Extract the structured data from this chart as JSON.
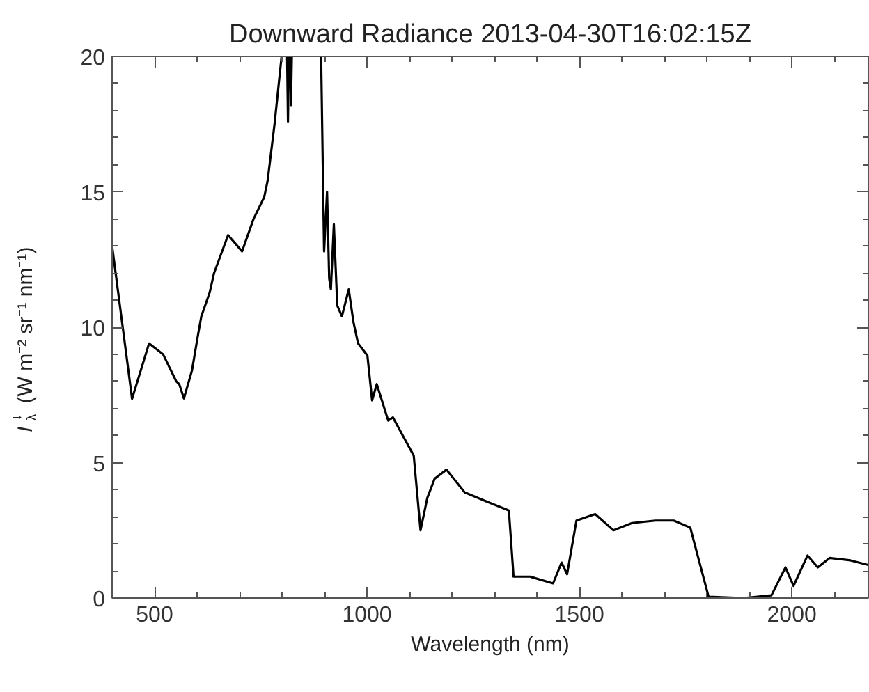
{
  "chart_data": {
    "type": "line",
    "title": "Downward Radiance 2013-04-30T16:02:15Z",
    "xlabel": "Wavelength (nm)",
    "ylabel": "I$^{↓}$$_{λ}$ (W m⁻² sr⁻¹ nm⁻¹)",
    "xlim": [
      400,
      2180
    ],
    "ylim": [
      0,
      20
    ],
    "xticks": [
      500,
      1000,
      1500,
      2000
    ],
    "yticks": [
      0,
      5,
      10,
      15,
      20
    ],
    "grid": false,
    "marker": "none",
    "line_style": "solid",
    "series": [
      {
        "color": "#000000",
        "x": [
          400,
          447,
          487,
          520,
          551,
          558,
          569,
          588,
          602,
          610,
          630,
          640,
          673,
          706,
          733,
          758,
          766,
          782,
          799,
          null,
          812,
          814,
          816,
          null,
          819,
          821,
          823,
          null,
          892,
          899,
          906,
          911,
          915,
          922,
          930,
          941,
          957,
          968,
          979,
          1001,
          1012,
          1023,
          1050,
          1061,
          1089,
          1110,
          1126,
          1142,
          1159,
          1187,
          1230,
          1285,
          1334,
          1345,
          1384,
          1438,
          1458,
          1471,
          1493,
          1537,
          1580,
          1624,
          1679,
          1722,
          1761,
          1777,
          1804,
          1886,
          1952,
          1985,
          2004,
          2037,
          2061,
          2089,
          2138,
          2180
        ],
        "values": [
          13.0,
          7.36,
          9.4,
          9.0,
          8.0,
          7.9,
          7.37,
          8.4,
          9.7,
          10.4,
          11.3,
          12.0,
          13.4,
          12.8,
          14.0,
          14.8,
          15.4,
          17.45,
          20.0,
          null,
          20.0,
          17.6,
          20.0,
          null,
          20.0,
          18.2,
          20.0,
          null,
          20.0,
          12.8,
          15.0,
          11.8,
          11.4,
          13.8,
          10.8,
          10.4,
          11.4,
          10.2,
          9.4,
          8.95,
          7.3,
          7.9,
          6.55,
          6.67,
          5.86,
          5.26,
          2.5,
          3.7,
          4.4,
          4.74,
          3.9,
          3.54,
          3.23,
          0.79,
          0.79,
          0.54,
          1.31,
          0.88,
          2.86,
          3.1,
          2.5,
          2.77,
          2.86,
          2.86,
          2.6,
          1.65,
          0.05,
          0.0,
          0.1,
          1.13,
          0.45,
          1.57,
          1.13,
          1.48,
          1.39,
          1.22
        ]
      }
    ]
  }
}
